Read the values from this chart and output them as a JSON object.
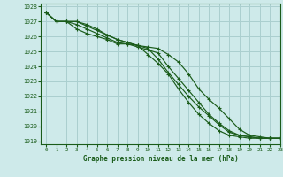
{
  "title": "Graphe pression niveau de la mer (hPa)",
  "bg_color": "#ceeaea",
  "grid_color": "#aacfcf",
  "line_color": "#1a5c1a",
  "xlim": [
    -0.5,
    23
  ],
  "ylim": [
    1018.8,
    1028.2
  ],
  "xticks": [
    0,
    1,
    2,
    3,
    4,
    5,
    6,
    7,
    8,
    9,
    10,
    11,
    12,
    13,
    14,
    15,
    16,
    17,
    18,
    19,
    20,
    21,
    22,
    23
  ],
  "yticks": [
    1019,
    1020,
    1021,
    1022,
    1023,
    1024,
    1025,
    1026,
    1027,
    1028
  ],
  "series": [
    [
      1027.6,
      1027.0,
      1027.0,
      1026.5,
      1026.2,
      1026.0,
      1025.8,
      1025.5,
      1025.5,
      1025.4,
      1025.3,
      1025.2,
      1024.8,
      1024.3,
      1023.5,
      1022.5,
      1021.8,
      1021.2,
      1020.5,
      1019.8,
      1019.4,
      1019.3,
      1019.2,
      1019.2
    ],
    [
      1027.6,
      1027.0,
      1027.0,
      1026.8,
      1026.5,
      1026.2,
      1025.9,
      1025.6,
      1025.5,
      1025.3,
      1025.1,
      1024.9,
      1024.0,
      1023.2,
      1022.4,
      1021.6,
      1020.8,
      1020.2,
      1019.7,
      1019.4,
      1019.3,
      1019.2,
      1019.2,
      1019.2
    ],
    [
      1027.6,
      1027.0,
      1027.0,
      1027.0,
      1026.7,
      1026.4,
      1026.1,
      1025.8,
      1025.6,
      1025.4,
      1025.2,
      1024.5,
      1023.6,
      1022.8,
      1022.0,
      1021.3,
      1020.7,
      1020.1,
      1019.6,
      1019.4,
      1019.3,
      1019.2,
      1019.2,
      1019.2
    ],
    [
      1027.6,
      1027.0,
      1027.0,
      1027.0,
      1026.8,
      1026.5,
      1026.1,
      1025.8,
      1025.6,
      1025.4,
      1024.8,
      1024.2,
      1023.5,
      1022.5,
      1021.6,
      1020.8,
      1020.2,
      1019.7,
      1019.4,
      1019.3,
      1019.2,
      1019.2,
      1019.2,
      1019.2
    ]
  ]
}
